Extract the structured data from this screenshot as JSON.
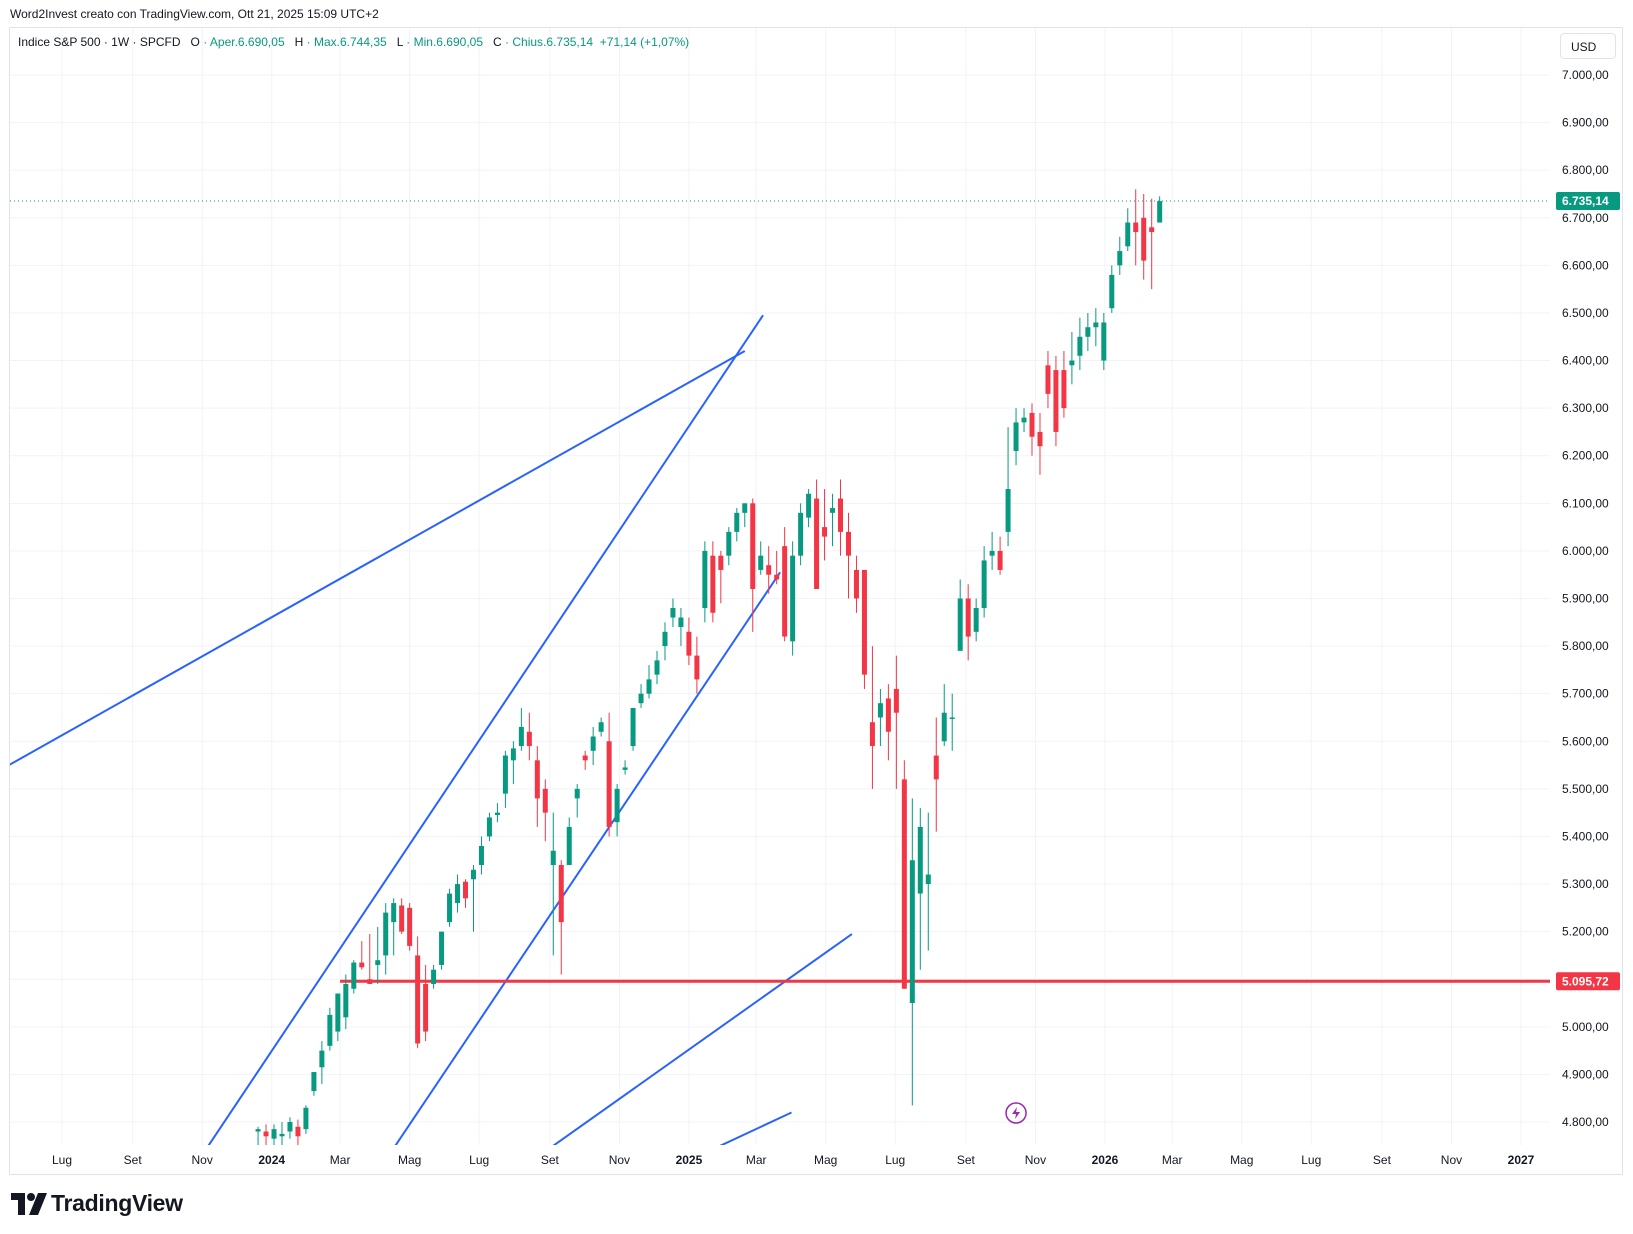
{
  "header": {
    "caption": "Word2Invest creato con TradingView.com, Ott 21, 2025 15:09 UTC+2"
  },
  "legend": {
    "symbol": "Indice S&P 500 · 1W · SPCFD",
    "open_label": "O",
    "open_value": "· Aper.6.690,05",
    "high_label": "H",
    "high_value": "· Max.6.744,35",
    "low_label": "L",
    "low_value": "· Min.6.690,05",
    "close_label": "C",
    "close_value": "· Chius.6.735,14",
    "change_value": "+71,14 (+1,07%)"
  },
  "currency_button": "USD",
  "branding": {
    "logo_text": "TradingView"
  },
  "colors": {
    "up": "#089981",
    "down": "#f23645",
    "trendline": "#2962ff",
    "support": "#f23645",
    "grid": "#f0f3fa"
  },
  "icons": {
    "logo": "tradingview-logo-icon",
    "event": "lightning-bolt-icon"
  },
  "chart_data": {
    "type": "candlestick",
    "title": "Indice S&P 500 · 1W · SPCFD",
    "ylim": [
      4740,
      7080
    ],
    "y_ticks": [
      {
        "value": 7000,
        "label": "7.000,00"
      },
      {
        "value": 6900,
        "label": "6.900,00"
      },
      {
        "value": 6800,
        "label": "6.800,00"
      },
      {
        "value": 6700,
        "label": "6.700,00"
      },
      {
        "value": 6600,
        "label": "6.600,00"
      },
      {
        "value": 6500,
        "label": "6.500,00"
      },
      {
        "value": 6400,
        "label": "6.400,00"
      },
      {
        "value": 6300,
        "label": "6.300,00"
      },
      {
        "value": 6200,
        "label": "6.200,00"
      },
      {
        "value": 6100,
        "label": "6.100,00"
      },
      {
        "value": 6000,
        "label": "6.000,00"
      },
      {
        "value": 5900,
        "label": "5.900,00"
      },
      {
        "value": 5800,
        "label": "5.800,00"
      },
      {
        "value": 5700,
        "label": "5.700,00"
      },
      {
        "value": 5600,
        "label": "5.600,00"
      },
      {
        "value": 5500,
        "label": "5.500,00"
      },
      {
        "value": 5400,
        "label": "5.400,00"
      },
      {
        "value": 5300,
        "label": "5.300,00"
      },
      {
        "value": 5200,
        "label": "5.200,00"
      },
      {
        "value": 5100,
        "label": "5.100,00"
      },
      {
        "value": 5000,
        "label": "5.000,00"
      },
      {
        "value": 4900,
        "label": "4.900,00"
      },
      {
        "value": 4800,
        "label": "4.800,00"
      }
    ],
    "x_ticks": [
      {
        "date": "2023-07-01",
        "label": "Lug",
        "year": false
      },
      {
        "date": "2023-09-01",
        "label": "Set",
        "year": false
      },
      {
        "date": "2023-11-01",
        "label": "Nov",
        "year": false
      },
      {
        "date": "2024-01-01",
        "label": "2024",
        "year": true
      },
      {
        "date": "2024-03-01",
        "label": "Mar",
        "year": false
      },
      {
        "date": "2024-05-01",
        "label": "Mag",
        "year": false
      },
      {
        "date": "2024-07-01",
        "label": "Lug",
        "year": false
      },
      {
        "date": "2024-09-01",
        "label": "Set",
        "year": false
      },
      {
        "date": "2024-11-01",
        "label": "Nov",
        "year": false
      },
      {
        "date": "2025-01-01",
        "label": "2025",
        "year": true
      },
      {
        "date": "2025-03-01",
        "label": "Mar",
        "year": false
      },
      {
        "date": "2025-05-01",
        "label": "Mag",
        "year": false
      },
      {
        "date": "2025-07-01",
        "label": "Lug",
        "year": false
      },
      {
        "date": "2025-09-01",
        "label": "Set",
        "year": false
      },
      {
        "date": "2025-11-01",
        "label": "Nov",
        "year": false
      },
      {
        "date": "2026-01-01",
        "label": "2026",
        "year": true
      },
      {
        "date": "2026-03-01",
        "label": "Mar",
        "year": false
      },
      {
        "date": "2026-05-01",
        "label": "Mag",
        "year": false
      },
      {
        "date": "2026-07-01",
        "label": "Lug",
        "year": false
      },
      {
        "date": "2026-09-01",
        "label": "Set",
        "year": false
      },
      {
        "date": "2026-11-01",
        "label": "Nov",
        "year": false
      },
      {
        "date": "2027-01-01",
        "label": "2027",
        "year": true
      }
    ],
    "last_price": {
      "value": 6735.14,
      "label": "6.735,14"
    },
    "support_level": {
      "value": 5095.72,
      "label": "5.095,72",
      "start_date": "2024-03-01"
    },
    "trendlines": [
      {
        "p1": {
          "date": "2023-04-01",
          "value": 5490
        },
        "p2": {
          "date": "2025-02-19",
          "value": 6420
        }
      },
      {
        "p1": {
          "date": "2023-11-05",
          "value": 4745
        },
        "p2": {
          "date": "2025-03-07",
          "value": 6495
        }
      },
      {
        "p1": {
          "date": "2024-04-17",
          "value": 4745
        },
        "p2": {
          "date": "2025-03-22",
          "value": 5955
        }
      },
      {
        "p1": {
          "date": "2024-09-01",
          "value": 4745
        },
        "p2": {
          "date": "2025-05-24",
          "value": 5195
        }
      },
      {
        "p1": {
          "date": "2025-01-24",
          "value": 4745
        },
        "p2": {
          "date": "2025-04-01",
          "value": 4820
        }
      }
    ],
    "candles": [
      {
        "t": "2023-12-20",
        "o": 4780,
        "h": 4790,
        "l": 4745,
        "c": 4785
      },
      {
        "t": "2023-12-27",
        "o": 4780,
        "h": 4795,
        "l": 4745,
        "c": 4770
      },
      {
        "t": "2024-01-03",
        "o": 4765,
        "h": 4795,
        "l": 4745,
        "c": 4785
      },
      {
        "t": "2024-01-10",
        "o": 4770,
        "h": 4800,
        "l": 4745,
        "c": 4775
      },
      {
        "t": "2024-01-17",
        "o": 4780,
        "h": 4810,
        "l": 4765,
        "c": 4800
      },
      {
        "t": "2024-01-24",
        "o": 4790,
        "h": 4805,
        "l": 4745,
        "c": 4770
      },
      {
        "t": "2024-01-31",
        "o": 4785,
        "h": 4835,
        "l": 4775,
        "c": 4830
      },
      {
        "t": "2024-02-07",
        "o": 4865,
        "h": 4890,
        "l": 4855,
        "c": 4905
      },
      {
        "t": "2024-02-14",
        "o": 4915,
        "h": 4970,
        "l": 4880,
        "c": 4950
      },
      {
        "t": "2024-02-21",
        "o": 4960,
        "h": 5040,
        "l": 4950,
        "c": 5025
      },
      {
        "t": "2024-02-28",
        "o": 4990,
        "h": 5070,
        "l": 4970,
        "c": 5070
      },
      {
        "t": "2024-03-06",
        "o": 5020,
        "h": 5110,
        "l": 4995,
        "c": 5090
      },
      {
        "t": "2024-03-13",
        "o": 5080,
        "h": 5140,
        "l": 5070,
        "c": 5135
      },
      {
        "t": "2024-03-20",
        "o": 5135,
        "h": 5180,
        "l": 5120,
        "c": 5125
      },
      {
        "t": "2024-03-27",
        "o": 5100,
        "h": 5195,
        "l": 5090,
        "c": 5090
      },
      {
        "t": "2024-04-03",
        "o": 5130,
        "h": 5210,
        "l": 5090,
        "c": 5140
      },
      {
        "t": "2024-04-10",
        "o": 5150,
        "h": 5260,
        "l": 5110,
        "c": 5240
      },
      {
        "t": "2024-04-17",
        "o": 5220,
        "h": 5270,
        "l": 5150,
        "c": 5260
      },
      {
        "t": "2024-04-24",
        "o": 5255,
        "h": 5270,
        "l": 5195,
        "c": 5200
      },
      {
        "t": "2024-05-01",
        "o": 5250,
        "h": 5260,
        "l": 5160,
        "c": 5170
      },
      {
        "t": "2024-05-08",
        "o": 5150,
        "h": 5190,
        "l": 4955,
        "c": 4965
      },
      {
        "t": "2024-05-15",
        "o": 5090,
        "h": 5130,
        "l": 4970,
        "c": 4990
      },
      {
        "t": "2024-05-22",
        "o": 5090,
        "h": 5130,
        "l": 5080,
        "c": 5120
      },
      {
        "t": "2024-05-29",
        "o": 5130,
        "h": 5200,
        "l": 5120,
        "c": 5200
      },
      {
        "t": "2024-06-05",
        "o": 5220,
        "h": 5290,
        "l": 5210,
        "c": 5280
      },
      {
        "t": "2024-06-12",
        "o": 5260,
        "h": 5320,
        "l": 5240,
        "c": 5300
      },
      {
        "t": "2024-06-19",
        "o": 5305,
        "h": 5310,
        "l": 5250,
        "c": 5270
      },
      {
        "t": "2024-06-26",
        "o": 5310,
        "h": 5340,
        "l": 5200,
        "c": 5330
      },
      {
        "t": "2024-07-03",
        "o": 5340,
        "h": 5400,
        "l": 5320,
        "c": 5380
      },
      {
        "t": "2024-07-10",
        "o": 5400,
        "h": 5450,
        "l": 5390,
        "c": 5440
      },
      {
        "t": "2024-07-17",
        "o": 5445,
        "h": 5470,
        "l": 5430,
        "c": 5450
      },
      {
        "t": "2024-07-24",
        "o": 5490,
        "h": 5580,
        "l": 5460,
        "c": 5570
      },
      {
        "t": "2024-07-31",
        "o": 5560,
        "h": 5600,
        "l": 5510,
        "c": 5585
      },
      {
        "t": "2024-08-07",
        "o": 5590,
        "h": 5670,
        "l": 5580,
        "c": 5630
      },
      {
        "t": "2024-08-14",
        "o": 5620,
        "h": 5660,
        "l": 5560,
        "c": 5590
      },
      {
        "t": "2024-08-21",
        "o": 5560,
        "h": 5590,
        "l": 5420,
        "c": 5480
      },
      {
        "t": "2024-08-28",
        "o": 5500,
        "h": 5520,
        "l": 5390,
        "c": 5450
      },
      {
        "t": "2024-09-04",
        "o": 5340,
        "h": 5450,
        "l": 5150,
        "c": 5370
      },
      {
        "t": "2024-09-11",
        "o": 5340,
        "h": 5350,
        "l": 5110,
        "c": 5220
      },
      {
        "t": "2024-09-18",
        "o": 5340,
        "h": 5440,
        "l": 5350,
        "c": 5420
      },
      {
        "t": "2024-09-25",
        "o": 5480,
        "h": 5510,
        "l": 5440,
        "c": 5500
      },
      {
        "t": "2024-10-02",
        "o": 5570,
        "h": 5580,
        "l": 5540,
        "c": 5560
      },
      {
        "t": "2024-10-09",
        "o": 5580,
        "h": 5630,
        "l": 5550,
        "c": 5610
      },
      {
        "t": "2024-10-16",
        "o": 5620,
        "h": 5650,
        "l": 5610,
        "c": 5640
      },
      {
        "t": "2024-10-23",
        "o": 5600,
        "h": 5660,
        "l": 5400,
        "c": 5420
      },
      {
        "t": "2024-10-30",
        "o": 5430,
        "h": 5510,
        "l": 5400,
        "c": 5500
      },
      {
        "t": "2024-11-06",
        "o": 5540,
        "h": 5560,
        "l": 5530,
        "c": 5545
      },
      {
        "t": "2024-11-13",
        "o": 5590,
        "h": 5670,
        "l": 5580,
        "c": 5670
      },
      {
        "t": "2024-11-20",
        "o": 5680,
        "h": 5720,
        "l": 5670,
        "c": 5700
      },
      {
        "t": "2024-11-27",
        "o": 5700,
        "h": 5760,
        "l": 5690,
        "c": 5730
      },
      {
        "t": "2024-12-04",
        "o": 5740,
        "h": 5790,
        "l": 5720,
        "c": 5770
      },
      {
        "t": "2024-12-11",
        "o": 5800,
        "h": 5850,
        "l": 5770,
        "c": 5830
      },
      {
        "t": "2024-12-18",
        "o": 5860,
        "h": 5900,
        "l": 5840,
        "c": 5880
      },
      {
        "t": "2024-12-25",
        "o": 5840,
        "h": 5880,
        "l": 5800,
        "c": 5860
      },
      {
        "t": "2025-01-01",
        "o": 5830,
        "h": 5860,
        "l": 5760,
        "c": 5780
      },
      {
        "t": "2025-01-08",
        "o": 5780,
        "h": 5820,
        "l": 5700,
        "c": 5730
      },
      {
        "t": "2025-01-15",
        "o": 5880,
        "h": 6020,
        "l": 5850,
        "c": 6000
      },
      {
        "t": "2025-01-22",
        "o": 5990,
        "h": 6020,
        "l": 5850,
        "c": 5870
      },
      {
        "t": "2025-01-29",
        "o": 5990,
        "h": 6000,
        "l": 5890,
        "c": 5960
      },
      {
        "t": "2025-02-05",
        "o": 5990,
        "h": 6050,
        "l": 5970,
        "c": 6040
      },
      {
        "t": "2025-02-12",
        "o": 6040,
        "h": 6090,
        "l": 6020,
        "c": 6080
      },
      {
        "t": "2025-02-19",
        "o": 6080,
        "h": 6100,
        "l": 6050,
        "c": 6100
      },
      {
        "t": "2025-02-26",
        "o": 6100,
        "h": 6110,
        "l": 5830,
        "c": 5920
      },
      {
        "t": "2025-03-05",
        "o": 5960,
        "h": 6020,
        "l": 5950,
        "c": 5990
      },
      {
        "t": "2025-03-12",
        "o": 5970,
        "h": 6010,
        "l": 5910,
        "c": 5950
      },
      {
        "t": "2025-03-19",
        "o": 5950,
        "h": 6000,
        "l": 5930,
        "c": 5940
      },
      {
        "t": "2025-03-26",
        "o": 6010,
        "h": 6050,
        "l": 5810,
        "c": 5820
      },
      {
        "t": "2025-04-02",
        "o": 5810,
        "h": 6020,
        "l": 5780,
        "c": 5990
      },
      {
        "t": "2025-04-09",
        "o": 5990,
        "h": 6100,
        "l": 5970,
        "c": 6080
      },
      {
        "t": "2025-04-16",
        "o": 6070,
        "h": 6130,
        "l": 6050,
        "c": 6120
      },
      {
        "t": "2025-04-23",
        "o": 6110,
        "h": 6150,
        "l": 5920,
        "c": 5920
      },
      {
        "t": "2025-04-30",
        "o": 6050,
        "h": 6130,
        "l": 5980,
        "c": 6030
      },
      {
        "t": "2025-05-07",
        "o": 6080,
        "h": 6120,
        "l": 6010,
        "c": 6090
      },
      {
        "t": "2025-05-14",
        "o": 6110,
        "h": 6150,
        "l": 5990,
        "c": 6040
      },
      {
        "t": "2025-05-21",
        "o": 6040,
        "h": 6080,
        "l": 5900,
        "c": 5990
      },
      {
        "t": "2025-05-28",
        "o": 5960,
        "h": 5990,
        "l": 5870,
        "c": 5900
      },
      {
        "t": "2025-06-04",
        "o": 5960,
        "h": 5960,
        "l": 5710,
        "c": 5740
      },
      {
        "t": "2025-06-11",
        "o": 5640,
        "h": 5800,
        "l": 5500,
        "c": 5590
      },
      {
        "t": "2025-06-18",
        "o": 5650,
        "h": 5710,
        "l": 5590,
        "c": 5680
      },
      {
        "t": "2025-06-25",
        "o": 5690,
        "h": 5720,
        "l": 5560,
        "c": 5620
      },
      {
        "t": "2025-07-02",
        "o": 5710,
        "h": 5780,
        "l": 5500,
        "c": 5660
      },
      {
        "t": "2025-07-09",
        "o": 5520,
        "h": 5560,
        "l": 5080,
        "c": 5080
      },
      {
        "t": "2025-07-16",
        "o": 5050,
        "h": 5480,
        "l": 4835,
        "c": 5350
      },
      {
        "t": "2025-07-23",
        "o": 5280,
        "h": 5460,
        "l": 5120,
        "c": 5420
      },
      {
        "t": "2025-07-30",
        "o": 5300,
        "h": 5450,
        "l": 5160,
        "c": 5320
      },
      {
        "t": "2025-08-06",
        "o": 5570,
        "h": 5650,
        "l": 5410,
        "c": 5520
      },
      {
        "t": "2025-08-13",
        "o": 5600,
        "h": 5720,
        "l": 5590,
        "c": 5660
      },
      {
        "t": "2025-08-20",
        "o": 5650,
        "h": 5700,
        "l": 5580,
        "c": 5650
      },
      {
        "t": "2025-08-27",
        "o": 5790,
        "h": 5940,
        "l": 5800,
        "c": 5900
      },
      {
        "t": "2025-09-03",
        "o": 5900,
        "h": 5930,
        "l": 5770,
        "c": 5820
      },
      {
        "t": "2025-09-10",
        "o": 5830,
        "h": 5900,
        "l": 5810,
        "c": 5880
      },
      {
        "t": "2025-09-17",
        "o": 5880,
        "h": 6010,
        "l": 5860,
        "c": 5980
      },
      {
        "t": "2025-09-24",
        "o": 5990,
        "h": 6040,
        "l": 5960,
        "c": 6000
      },
      {
        "t": "2025-10-01",
        "o": 6000,
        "h": 6030,
        "l": 5950,
        "c": 5960
      },
      {
        "t": "2025-10-08",
        "o": 6040,
        "h": 6260,
        "l": 6010,
        "c": 6130
      },
      {
        "t": "2025-10-15",
        "o": 6210,
        "h": 6300,
        "l": 6180,
        "c": 6270
      },
      {
        "t": "2025-10-22",
        "o": 6270,
        "h": 6300,
        "l": 6250,
        "c": 6280
      },
      {
        "t": "2025-10-29",
        "o": 6290,
        "h": 6310,
        "l": 6200,
        "c": 6240
      },
      {
        "t": "2025-11-05",
        "o": 6250,
        "h": 6290,
        "l": 6160,
        "c": 6220
      },
      {
        "t": "2025-11-12",
        "o": 6390,
        "h": 6420,
        "l": 6300,
        "c": 6330
      },
      {
        "t": "2025-11-19",
        "o": 6380,
        "h": 6410,
        "l": 6220,
        "c": 6250
      },
      {
        "t": "2025-11-26",
        "o": 6380,
        "h": 6420,
        "l": 6280,
        "c": 6300
      },
      {
        "t": "2025-12-03",
        "o": 6390,
        "h": 6460,
        "l": 6350,
        "c": 6400
      },
      {
        "t": "2025-12-10",
        "o": 6410,
        "h": 6490,
        "l": 6380,
        "c": 6450
      },
      {
        "t": "2025-12-17",
        "o": 6450,
        "h": 6500,
        "l": 6420,
        "c": 6470
      },
      {
        "t": "2025-12-24",
        "o": 6470,
        "h": 6510,
        "l": 6430,
        "c": 6480
      },
      {
        "t": "2025-12-31",
        "o": 6400,
        "h": 6500,
        "l": 6380,
        "c": 6480
      },
      {
        "t": "2026-01-07",
        "o": 6510,
        "h": 6600,
        "l": 6500,
        "c": 6580
      },
      {
        "t": "2026-01-14",
        "o": 6600,
        "h": 6660,
        "l": 6580,
        "c": 6630
      },
      {
        "t": "2026-01-21",
        "o": 6640,
        "h": 6720,
        "l": 6630,
        "c": 6690
      },
      {
        "t": "2026-01-28",
        "o": 6690,
        "h": 6760,
        "l": 6600,
        "c": 6670
      },
      {
        "t": "2026-02-04",
        "o": 6700,
        "h": 6750,
        "l": 6570,
        "c": 6610
      },
      {
        "t": "2026-02-11",
        "o": 6680,
        "h": 6740,
        "l": 6550,
        "c": 6670
      },
      {
        "t": "2026-02-18",
        "o": 6690,
        "h": 6745,
        "l": 6690,
        "c": 6735
      }
    ]
  }
}
